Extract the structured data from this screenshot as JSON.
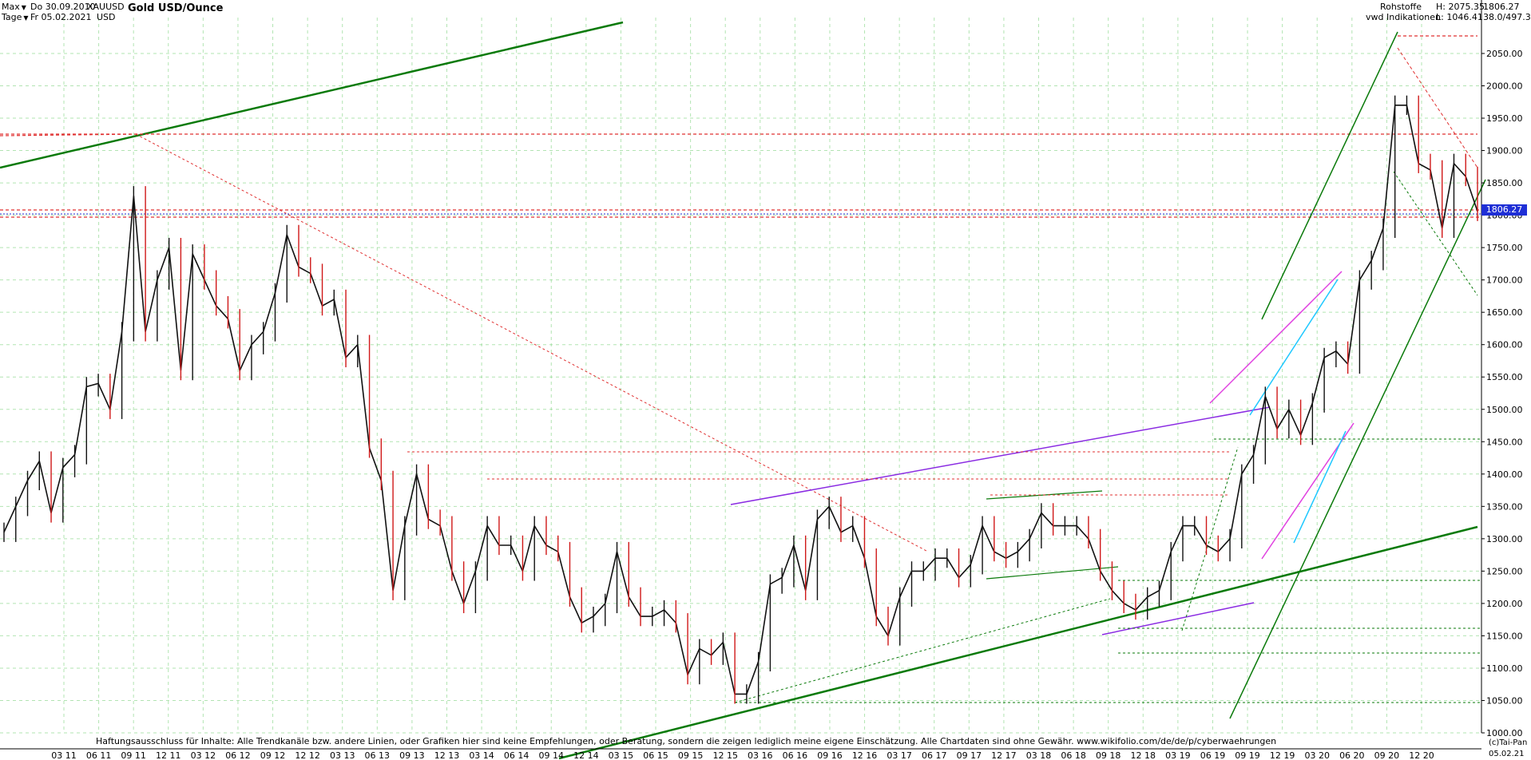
{
  "header": {
    "range_select": "Max",
    "interval_select": "Tage",
    "date_from": "Do 30.09.2010",
    "date_to": "Fr 05.02.2021",
    "symbol": "XAUUSD",
    "currency": "USD",
    "title": "Gold USD/Ounce",
    "category": "Rohstoffe",
    "source": "vwd Indikationen",
    "last": "1806.27",
    "high": "H: 2075.35",
    "low": "L: 1046.41",
    "volume": "38.0/497.3"
  },
  "footer": {
    "disclaimer": "Haftungsausschluss für Inhalte: Alle Trendkanäle bzw. andere Linien, oder Grafiken hier sind keine Empfehlungen, oder Beratung, sondern die zeigen lediglich meine eigene Einschätzung. Alle Chartdaten sind ohne Gewähr.  www.wikifolio.com/de/de/p/cyberwaehrungen",
    "copyright": "(c)Tai-Pan",
    "end_date": "05.02.21"
  },
  "colors": {
    "grid": "#7fd37f",
    "trend_main": "#0a7a0a",
    "trend_purple": "#8a2be2",
    "trend_magenta": "#e040e0",
    "trend_cyan": "#1ec8ff",
    "resistance_red": "#e03030",
    "last_price_marker": "#1f2fd6"
  },
  "chart_data": {
    "type": "line",
    "title": "Gold USD/Ounce",
    "ylim": [
      1000,
      2100
    ],
    "yticks": [
      1000,
      1050,
      1100,
      1150,
      1200,
      1250,
      1300,
      1350,
      1400,
      1450,
      1500,
      1550,
      1600,
      1650,
      1700,
      1750,
      1800,
      1850,
      1900,
      1950,
      2000,
      2050
    ],
    "xticks": [
      "03 11",
      "06 11",
      "09 11",
      "12 11",
      "03 12",
      "06 12",
      "09 12",
      "12 12",
      "03 13",
      "06 13",
      "09 13",
      "12 13",
      "03 14",
      "06 14",
      "09 14",
      "12 14",
      "03 15",
      "06 15",
      "09 15",
      "12 15",
      "03 16",
      "06 16",
      "09 16",
      "12 16",
      "03 17",
      "06 17",
      "09 17",
      "12 17",
      "03 18",
      "06 18",
      "09 18",
      "12 18",
      "03 19",
      "06 19",
      "09 19",
      "12 19",
      "03 20",
      "06 20",
      "09 20",
      "12 20"
    ],
    "series": [
      {
        "x": [
          "09 10",
          "10 10",
          "11 10",
          "12 10",
          "01 11",
          "02 11",
          "03 11",
          "04 11",
          "05 11",
          "06 11",
          "07 11",
          "08 11",
          "09 11",
          "10 11",
          "11 11",
          "12 11",
          "01 12",
          "02 12",
          "03 12",
          "04 12",
          "05 12",
          "06 12",
          "07 12",
          "08 12",
          "09 12",
          "10 12",
          "11 12",
          "12 12",
          "01 13",
          "02 13",
          "03 13",
          "04 13",
          "05 13",
          "06 13",
          "07 13",
          "08 13",
          "09 13",
          "10 13",
          "11 13",
          "12 13",
          "01 14",
          "02 14",
          "03 14",
          "04 14",
          "05 14",
          "06 14",
          "07 14",
          "08 14",
          "09 14",
          "10 14",
          "11 14",
          "12 14",
          "01 15",
          "02 15",
          "03 15",
          "04 15",
          "05 15",
          "06 15",
          "07 15",
          "08 15",
          "09 15",
          "10 15",
          "11 15",
          "12 15",
          "01 16",
          "02 16",
          "03 16",
          "04 16",
          "05 16",
          "06 16",
          "07 16",
          "08 16",
          "09 16",
          "10 16",
          "11 16",
          "12 16",
          "01 17",
          "02 17",
          "03 17",
          "04 17",
          "05 17",
          "06 17",
          "07 17",
          "08 17",
          "09 17",
          "10 17",
          "11 17",
          "12 17",
          "01 18",
          "02 18",
          "03 18",
          "04 18",
          "05 18",
          "06 18",
          "07 18",
          "08 18",
          "09 18",
          "10 18",
          "11 18",
          "12 18",
          "01 19",
          "02 19",
          "03 19",
          "04 19",
          "05 19",
          "06 19",
          "07 19",
          "08 19",
          "09 19",
          "10 19",
          "11 19",
          "12 19",
          "01 20",
          "02 20",
          "03 20",
          "04 20",
          "05 20",
          "06 20",
          "07 20",
          "08 20",
          "09 20",
          "10 20",
          "11 20",
          "12 20",
          "01 21",
          "02 21"
        ],
        "values": [
          1310,
          1350,
          1390,
          1420,
          1340,
          1410,
          1430,
          1535,
          1540,
          1500,
          1620,
          1830,
          1620,
          1700,
          1750,
          1560,
          1740,
          1700,
          1660,
          1640,
          1560,
          1600,
          1620,
          1680,
          1770,
          1720,
          1710,
          1660,
          1670,
          1580,
          1600,
          1440,
          1390,
          1220,
          1320,
          1400,
          1330,
          1320,
          1250,
          1200,
          1250,
          1320,
          1290,
          1290,
          1250,
          1320,
          1290,
          1280,
          1210,
          1170,
          1180,
          1200,
          1280,
          1210,
          1180,
          1180,
          1190,
          1170,
          1090,
          1130,
          1120,
          1140,
          1060,
          1060,
          1110,
          1230,
          1240,
          1290,
          1220,
          1330,
          1350,
          1310,
          1320,
          1270,
          1180,
          1150,
          1210,
          1250,
          1250,
          1270,
          1270,
          1240,
          1260,
          1320,
          1280,
          1270,
          1280,
          1300,
          1340,
          1320,
          1320,
          1320,
          1300,
          1250,
          1220,
          1200,
          1190,
          1210,
          1220,
          1280,
          1320,
          1320,
          1290,
          1280,
          1300,
          1400,
          1430,
          1520,
          1470,
          1500,
          1460,
          1510,
          1580,
          1590,
          1570,
          1700,
          1730,
          1780,
          1970,
          1970,
          1880,
          1870,
          1780,
          1880,
          1860,
          1806
        ]
      }
    ],
    "last": 1806.27
  }
}
